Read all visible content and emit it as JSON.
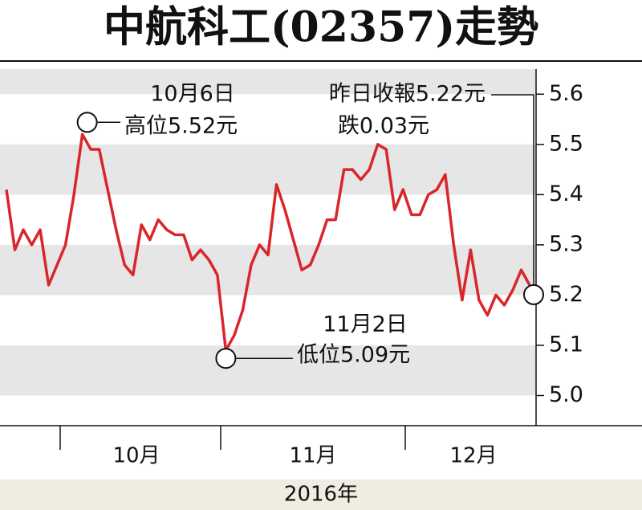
{
  "chart_data": {
    "type": "line",
    "title": "中航科工(02357)走勢",
    "categories": [
      null,
      null,
      null,
      null,
      null,
      null,
      null,
      null,
      null,
      null,
      null,
      null,
      null,
      null,
      null,
      null,
      null,
      null,
      null,
      null,
      null,
      null,
      null,
      null,
      null,
      null,
      null,
      null,
      null,
      null,
      null,
      null,
      null,
      null,
      null,
      null,
      null,
      null,
      null,
      null,
      null,
      null,
      null,
      null,
      null,
      null,
      null,
      null,
      null,
      null,
      null,
      null,
      null,
      null,
      null,
      null,
      null,
      null,
      null,
      null,
      null,
      null,
      null
    ],
    "series": [
      {
        "color": "#d9262b",
        "values": [
          5.41,
          5.29,
          5.33,
          5.3,
          5.33,
          5.22,
          5.26,
          5.3,
          5.4,
          5.52,
          5.49,
          5.49,
          5.41,
          5.33,
          5.26,
          5.24,
          5.34,
          5.31,
          5.35,
          5.33,
          5.32,
          5.32,
          5.27,
          5.29,
          5.27,
          5.24,
          5.09,
          5.12,
          5.17,
          5.26,
          5.3,
          5.28,
          5.42,
          5.37,
          5.31,
          5.25,
          5.26,
          5.3,
          5.35,
          5.35,
          5.45,
          5.45,
          5.43,
          5.45,
          5.5,
          5.49,
          5.37,
          5.41,
          5.36,
          5.36,
          5.4,
          5.41,
          5.44,
          5.3,
          5.19,
          5.29,
          5.19,
          5.16,
          5.2,
          5.18,
          5.21,
          5.25,
          5.22
        ]
      }
    ],
    "ylim": [
      4.94,
      5.65
    ],
    "yticks": [
      {
        "value": 5.0,
        "label": "5.0"
      },
      5.1,
      5.2,
      5.3,
      5.4,
      5.5,
      5.6
    ],
    "month_labels": [
      "10月",
      "11月",
      "12月"
    ],
    "year_label": "2016年",
    "annotations": {
      "high_date": "10月6日",
      "high": "高位5.52元",
      "last": "昨日收報5.22元",
      "change": "跌0.03元",
      "low_date": "11月2日",
      "low": "低位5.09元"
    }
  }
}
